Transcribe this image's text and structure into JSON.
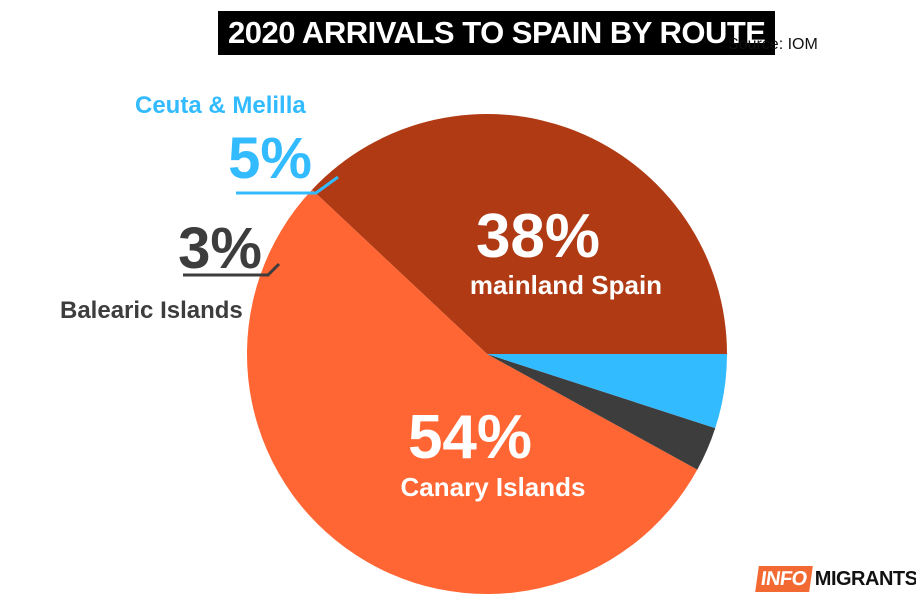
{
  "title": "2020 ARRIVALS TO SPAIN BY ROUTE",
  "source": "Source: IOM",
  "logo": {
    "part1": "INFO",
    "part2": "MIGRANTS"
  },
  "colors": {
    "mainland": "#b03a13",
    "canary": "#ff6633",
    "balearic": "#3d3d3d",
    "ceuta": "#33bbff"
  },
  "chart_data": {
    "type": "pie",
    "title": "2020 ARRIVALS TO SPAIN BY ROUTE",
    "slices": [
      {
        "label": "mainland Spain",
        "value": 38,
        "display": "38%",
        "color": "#b03a13"
      },
      {
        "label": "Canary Islands",
        "value": 54,
        "display": "54%",
        "color": "#ff6633"
      },
      {
        "label": "Balearic Islands",
        "value": 3,
        "display": "3%",
        "color": "#3d3d3d"
      },
      {
        "label": "Ceuta & Melilla",
        "value": 5,
        "display": "5%",
        "color": "#33bbff"
      }
    ]
  }
}
